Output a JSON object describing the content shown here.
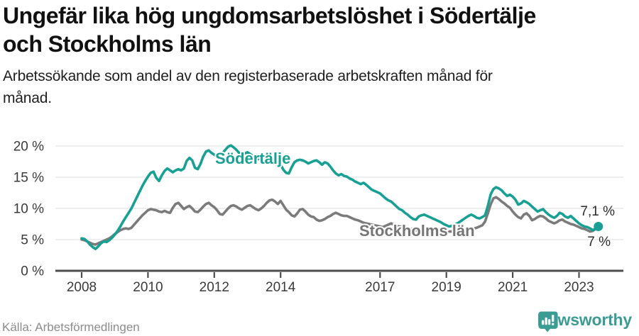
{
  "header": {
    "title_lines": [
      "Ungefär lika hög ungdomsarbetslöshet i Södertälje",
      "och Stockholms län"
    ],
    "subtitle_lines": [
      "Arbetssökande som andel av den registerbaserade arbetskraften månad för",
      "månad."
    ]
  },
  "footer": {
    "source": "Källa: Arbetsförmedlingen",
    "logo_text": "Newsworthy"
  },
  "colors": {
    "sodertalje_line": "#17a093",
    "stockholm_line": "#7b7b7b",
    "stockholm_label": "#757575",
    "axis": "#4d4d4d",
    "grid": "#e4e4e4",
    "tick_label": "#3a3a3a",
    "annotation": "#2b2b2b",
    "logo_teal": "#3b9c94"
  },
  "chart_data": {
    "type": "line",
    "frequency": "monthly",
    "x_start_year": 2008,
    "x_start_month": 1,
    "x_end_year": 2023,
    "x_end_month": 8,
    "grid": true,
    "ylim": [
      0,
      20
    ],
    "yticks": [
      0,
      5,
      10,
      15,
      20
    ],
    "y_tick_labels": [
      "0 %",
      "5 %",
      "10 %",
      "15 %",
      "20 %"
    ],
    "xticks": [
      2008,
      2010,
      2012,
      2014,
      2017,
      2019,
      2021,
      2023
    ],
    "x_tick_labels": [
      "2008",
      "2010",
      "2012",
      "2014",
      "2017",
      "2019",
      "2021",
      "2023"
    ],
    "series": [
      {
        "name": "Södertälje",
        "end_label": "7,1 %",
        "end_value": 7.1,
        "values": [
          5.2,
          5.1,
          4.7,
          4.2,
          3.8,
          3.5,
          3.9,
          4.4,
          4.7,
          4.6,
          4.9,
          5.3,
          5.8,
          6.4,
          7.1,
          7.9,
          8.6,
          9.3,
          10.0,
          10.9,
          11.8,
          12.7,
          13.6,
          14.4,
          15.1,
          15.7,
          15.9,
          14.9,
          14.4,
          15.3,
          16.0,
          16.4,
          16.1,
          15.8,
          16.1,
          16.3,
          16.1,
          16.4,
          17.6,
          18.1,
          17.7,
          16.5,
          16.3,
          17.1,
          18.3,
          19.1,
          19.3,
          18.9,
          18.6,
          18.3,
          18.6,
          18.9,
          19.4,
          19.9,
          20.1,
          19.8,
          19.4,
          18.9,
          18.5,
          18.8,
          19.0,
          18.7,
          18.4,
          18.1,
          17.9,
          18.1,
          17.8,
          17.5,
          17.3,
          17.5,
          17.2,
          16.9,
          17.0,
          16.2,
          15.7,
          15.6,
          16.6,
          17.4,
          17.7,
          17.8,
          17.7,
          17.5,
          17.2,
          17.4,
          17.6,
          17.7,
          17.4,
          17.0,
          17.4,
          17.2,
          16.7,
          16.1,
          15.6,
          15.3,
          15.5,
          15.2,
          15.1,
          14.8,
          14.6,
          14.3,
          14.1,
          13.9,
          14.1,
          13.8,
          13.4,
          13.0,
          12.8,
          12.6,
          12.4,
          12.0,
          11.6,
          11.3,
          11.1,
          10.7,
          10.3,
          9.9,
          9.7,
          9.3,
          9.0,
          8.6,
          8.3,
          8.2,
          8.7,
          8.9,
          9.0,
          8.8,
          8.6,
          8.4,
          8.2,
          8.0,
          7.8,
          7.5,
          7.3,
          7.1,
          7.2,
          7.4,
          7.6,
          7.9,
          8.2,
          8.5,
          8.8,
          9.0,
          8.8,
          8.5,
          8.4,
          8.6,
          8.9,
          10.4,
          12.2,
          13.1,
          13.4,
          13.2,
          12.9,
          12.4,
          12.0,
          12.2,
          11.9,
          11.4,
          10.6,
          10.8,
          11.2,
          11.0,
          10.7,
          10.3,
          9.9,
          9.5,
          9.7,
          9.9,
          9.4,
          9.0,
          8.7,
          8.5,
          8.8,
          9.3,
          9.1,
          8.7,
          8.5,
          8.8,
          8.4,
          8.0,
          7.6,
          7.3,
          7.1,
          7.0,
          6.8,
          6.5,
          6.8,
          7.1
        ]
      },
      {
        "name": "Stockholms län",
        "end_label": "7 %",
        "end_value": 7.0,
        "values": [
          5.0,
          4.9,
          4.7,
          4.5,
          4.3,
          4.2,
          4.4,
          4.6,
          4.8,
          5.0,
          5.2,
          5.5,
          5.9,
          6.2,
          6.5,
          6.7,
          6.8,
          6.7,
          6.9,
          7.4,
          7.9,
          8.4,
          8.9,
          9.3,
          9.7,
          9.9,
          9.8,
          9.7,
          9.5,
          9.4,
          9.6,
          9.4,
          9.3,
          10.1,
          10.7,
          10.9,
          10.4,
          9.9,
          10.2,
          10.4,
          10.0,
          9.5,
          9.4,
          9.8,
          10.3,
          10.7,
          10.9,
          10.5,
          10.2,
          9.7,
          9.1,
          9.0,
          9.5,
          10.0,
          10.4,
          10.5,
          10.3,
          10.0,
          9.8,
          10.1,
          10.4,
          10.5,
          10.2,
          9.9,
          9.7,
          10.0,
          10.4,
          10.9,
          11.3,
          11.4,
          11.1,
          10.7,
          11.2,
          10.5,
          9.8,
          9.4,
          8.9,
          8.7,
          9.2,
          9.8,
          9.9,
          9.5,
          9.0,
          8.7,
          8.6,
          8.2,
          8.0,
          8.1,
          8.3,
          8.6,
          8.8,
          9.1,
          9.3,
          9.1,
          8.9,
          8.8,
          8.8,
          8.6,
          8.4,
          8.2,
          8.1,
          7.9,
          7.7,
          7.6,
          7.5,
          7.4,
          7.3,
          7.2,
          7.1,
          7.0,
          7.2,
          7.4,
          7.6,
          7.4,
          7.2,
          7.1,
          7.0,
          6.9,
          6.8,
          6.7,
          6.6,
          6.5,
          6.5,
          6.4,
          6.4,
          6.3,
          6.3,
          6.2,
          6.2,
          6.3,
          6.3,
          6.4,
          6.4,
          6.3,
          6.3,
          6.4,
          6.4,
          6.5,
          6.5,
          6.6,
          6.6,
          6.7,
          6.8,
          6.9,
          7.1,
          7.3,
          7.9,
          9.2,
          10.6,
          11.6,
          11.8,
          11.5,
          11.1,
          10.8,
          10.4,
          10.1,
          9.5,
          9.0,
          8.6,
          8.4,
          9.0,
          9.2,
          8.8,
          8.1,
          8.3,
          8.6,
          8.8,
          8.7,
          8.4,
          8.0,
          7.8,
          7.6,
          7.8,
          8.1,
          8.2,
          7.9,
          7.7,
          7.5,
          7.4,
          7.2,
          7.0,
          6.8,
          6.7,
          6.5,
          6.3,
          6.4,
          6.7,
          7.0
        ]
      }
    ]
  }
}
